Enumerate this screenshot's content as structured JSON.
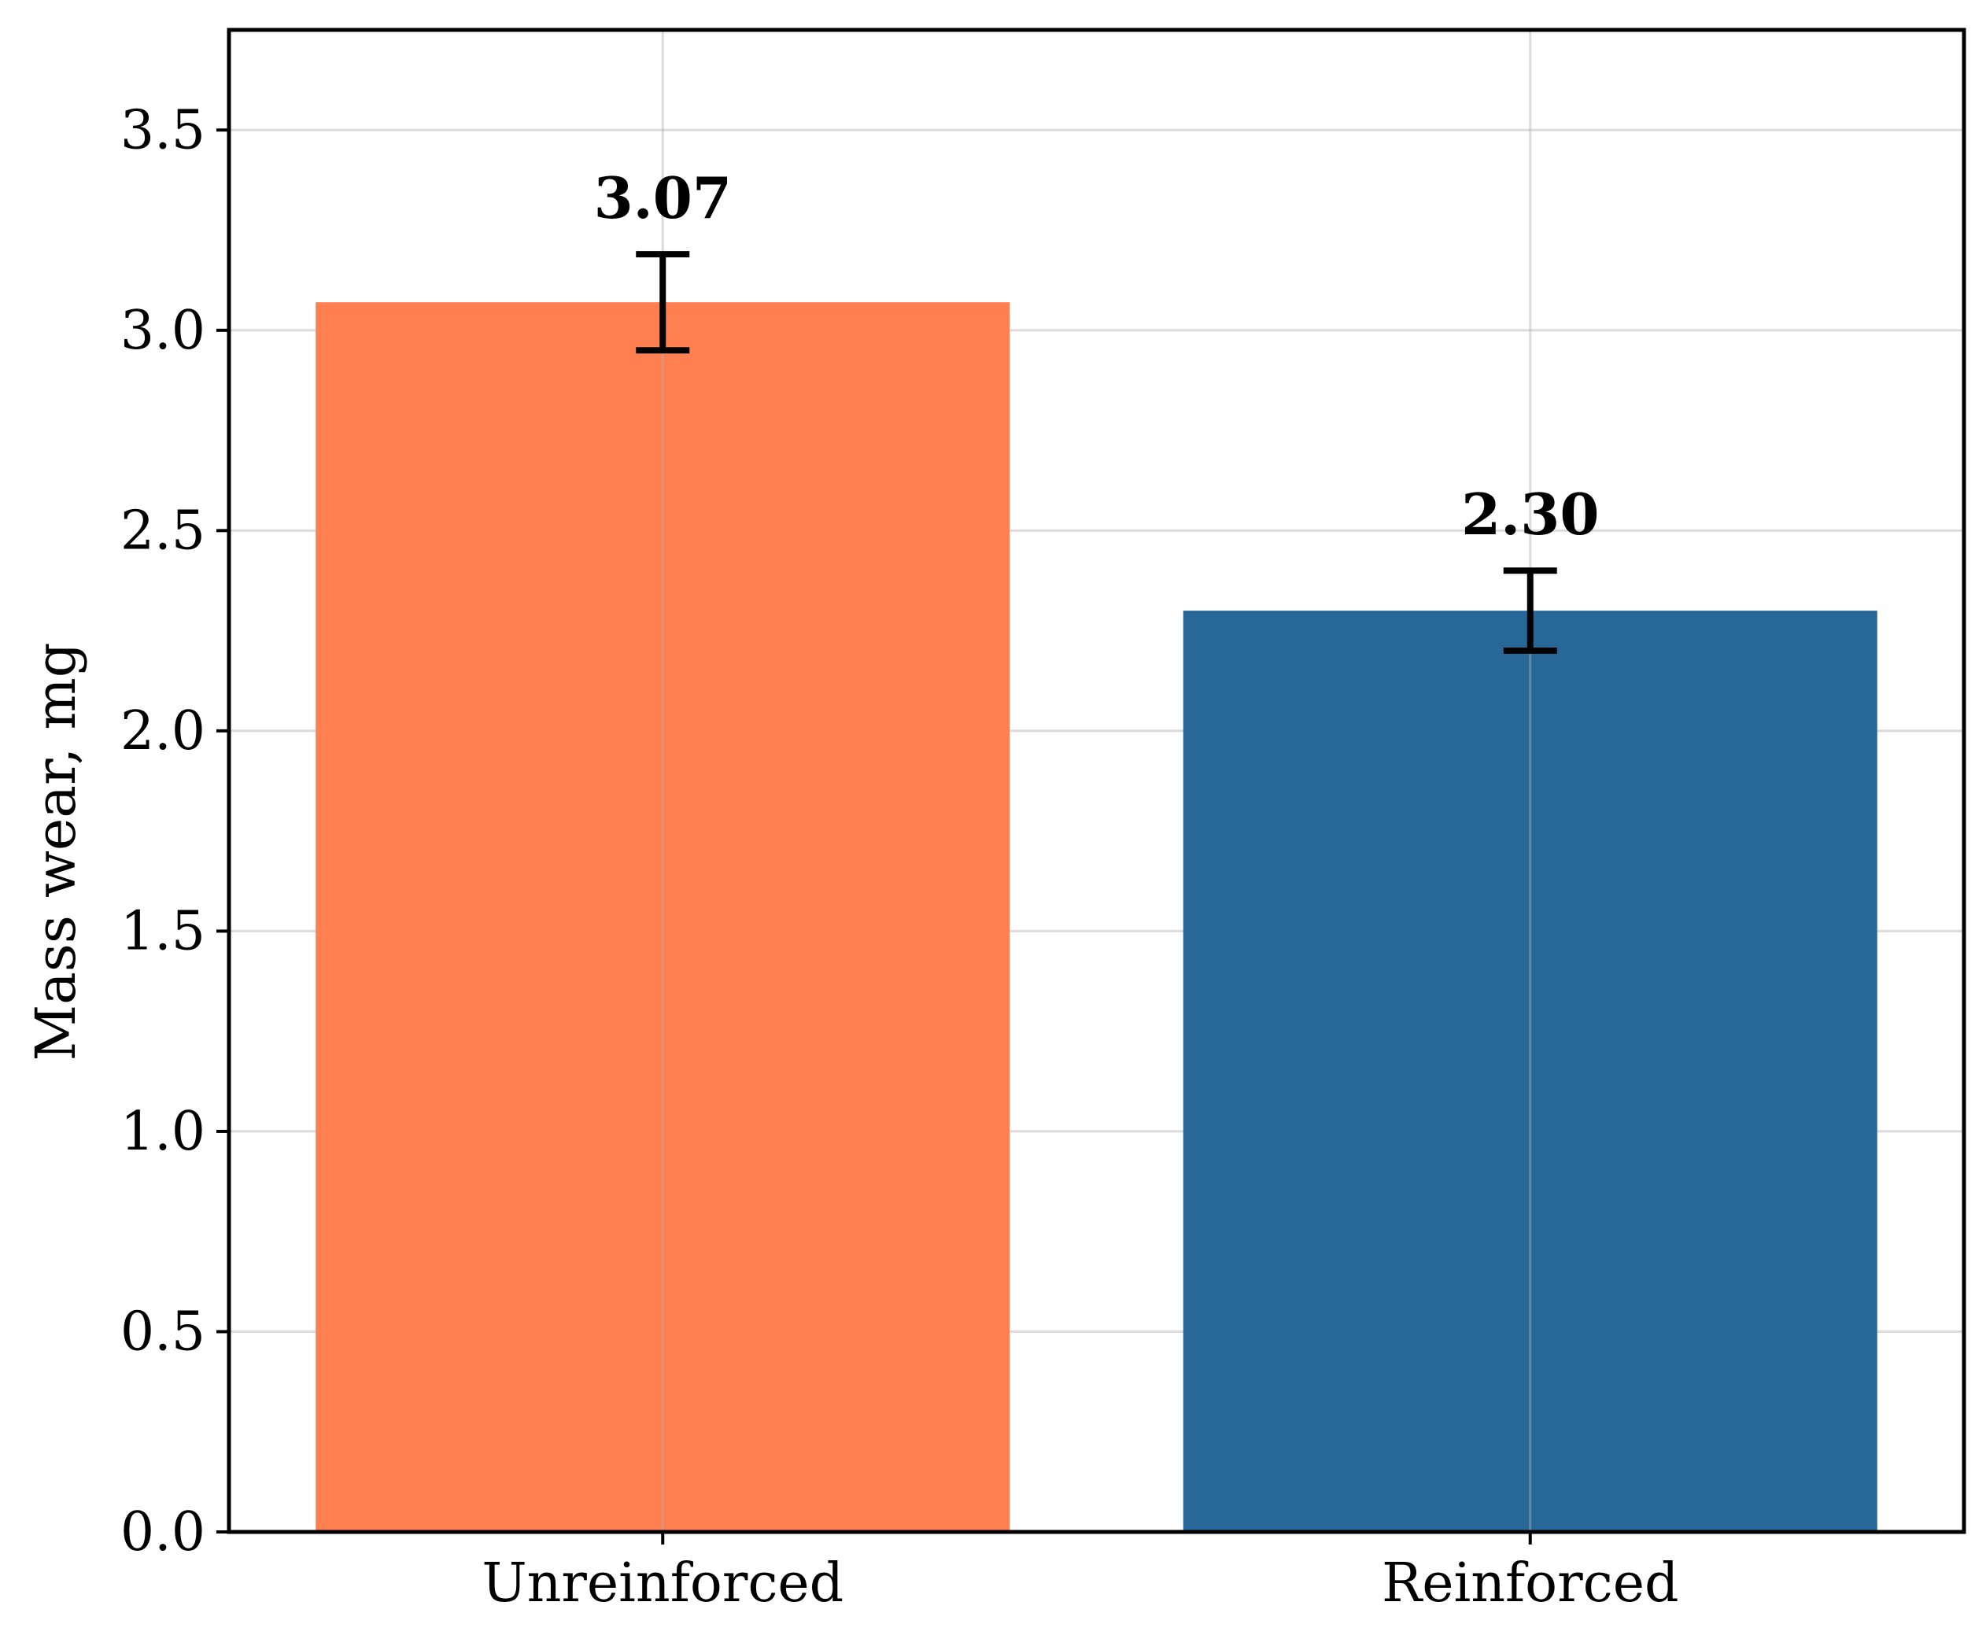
{
  "chart_data": {
    "type": "bar",
    "title": "",
    "xlabel": "",
    "ylabel": "Mass wear, mg",
    "categories": [
      "Unreinforced",
      "Reinforced"
    ],
    "values": [
      3.07,
      2.3
    ],
    "error": [
      0.12,
      0.1
    ],
    "value_labels": [
      "3.07",
      "2.30"
    ],
    "colors": [
      "#ff7f50",
      "#286899"
    ],
    "ylim": [
      0,
      3.75
    ],
    "yticks": [
      0.0,
      0.5,
      1.0,
      1.5,
      2.0,
      2.5,
      3.0,
      3.5
    ],
    "ytick_labels": [
      "0.0",
      "0.5",
      "1.0",
      "1.5",
      "2.0",
      "2.5",
      "3.0",
      "3.5"
    ],
    "grid": true,
    "legend": "none"
  }
}
